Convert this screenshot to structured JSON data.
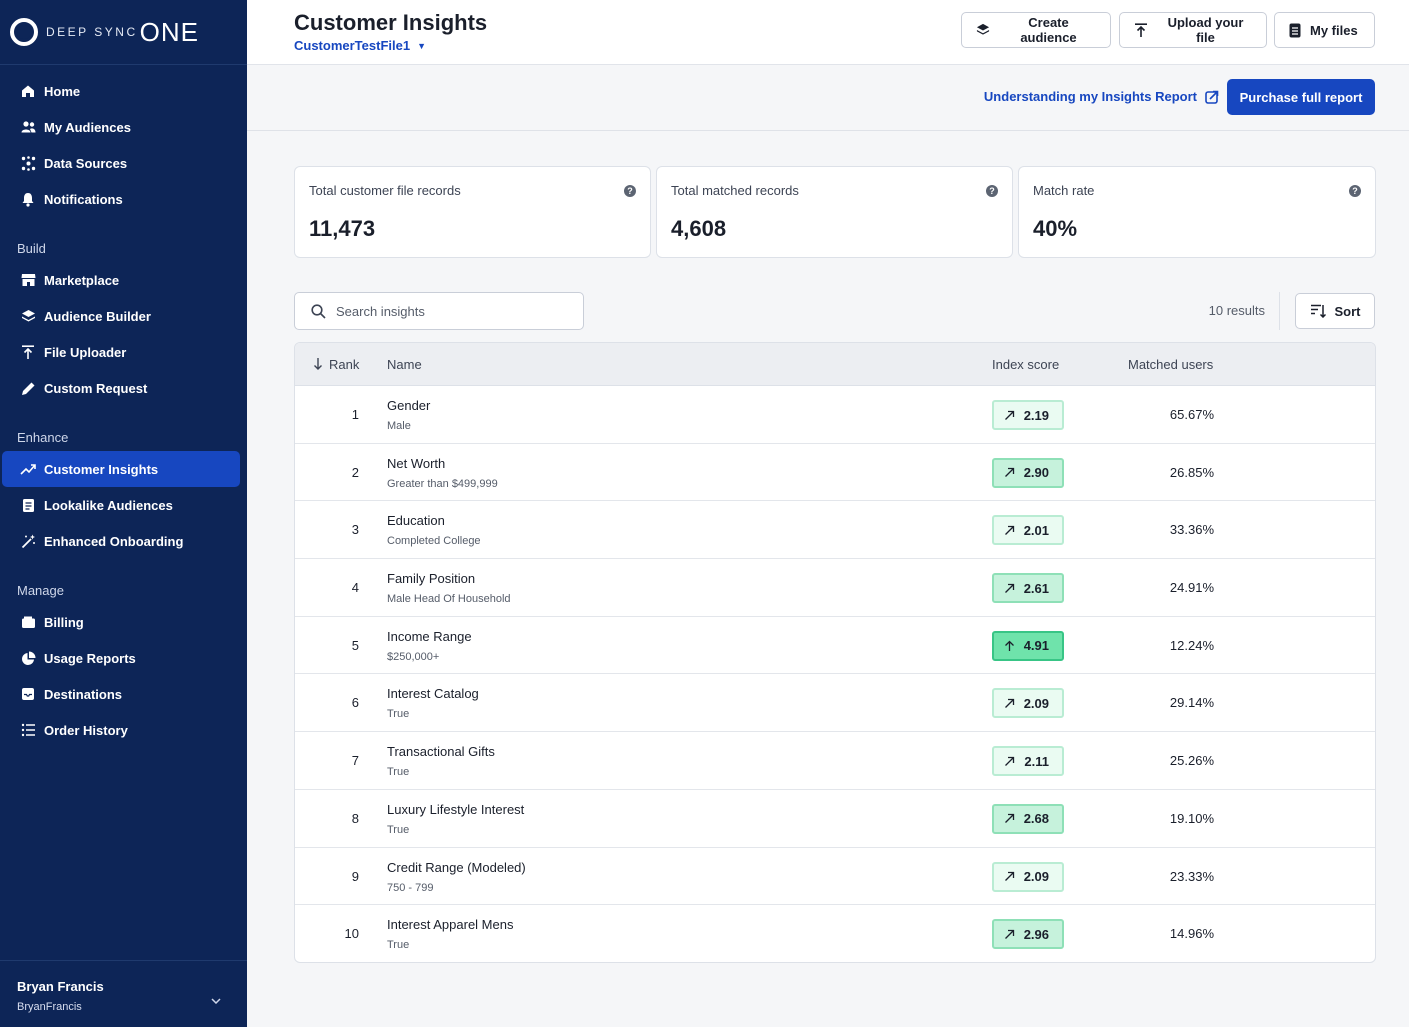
{
  "brand": {
    "logo_text": "DEEP SYNC",
    "logo_one": "ONE"
  },
  "sidebar": {
    "items_top": [
      {
        "label": "Home",
        "icon": "home-icon"
      },
      {
        "label": "My Audiences",
        "icon": "users-icon"
      },
      {
        "label": "Data Sources",
        "icon": "network-icon"
      },
      {
        "label": "Notifications",
        "icon": "bell-icon"
      }
    ],
    "section_build": "Build",
    "items_build": [
      {
        "label": "Marketplace",
        "icon": "store-icon"
      },
      {
        "label": "Audience Builder",
        "icon": "layers-icon"
      },
      {
        "label": "File Uploader",
        "icon": "upload-icon"
      },
      {
        "label": "Custom Request",
        "icon": "edit-icon"
      }
    ],
    "section_enhance": "Enhance",
    "items_enhance": [
      {
        "label": "Customer Insights",
        "icon": "trend-icon"
      },
      {
        "label": "Lookalike Audiences",
        "icon": "document-icon"
      },
      {
        "label": "Enhanced Onboarding",
        "icon": "wand-icon"
      }
    ],
    "section_manage": "Manage",
    "items_manage": [
      {
        "label": "Billing",
        "icon": "wallet-icon"
      },
      {
        "label": "Usage Reports",
        "icon": "pie-icon"
      },
      {
        "label": "Destinations",
        "icon": "inbox-icon"
      },
      {
        "label": "Order History",
        "icon": "list-icon"
      }
    ],
    "user": {
      "name": "Bryan Francis",
      "handle": "BryanFrancis"
    }
  },
  "header": {
    "title": "Customer Insights",
    "file": "CustomerTestFile1",
    "create_label": "Create audience",
    "upload_label": "Upload your file",
    "files_label": "My files"
  },
  "subheader": {
    "help_link": "Understanding my Insights Report",
    "purchase_label": "Purchase full report"
  },
  "stats": [
    {
      "label": "Total customer file records",
      "value": "11,473"
    },
    {
      "label": "Total matched records",
      "value": "4,608"
    },
    {
      "label": "Match rate",
      "value": "40%"
    }
  ],
  "search": {
    "placeholder": "Search insights"
  },
  "results_text": "10 results",
  "sort_label": "Sort",
  "table": {
    "headers": {
      "rank": "Rank",
      "name": "Name",
      "score": "Index score",
      "matched": "Matched users"
    },
    "rows": [
      {
        "rank": "1",
        "name": "Gender",
        "sub": "Male",
        "score": "2.19",
        "matched": "65.67%"
      },
      {
        "rank": "2",
        "name": "Net Worth",
        "sub": "Greater than $499,999",
        "score": "2.90",
        "matched": "26.85%"
      },
      {
        "rank": "3",
        "name": "Education",
        "sub": "Completed College",
        "score": "2.01",
        "matched": "33.36%"
      },
      {
        "rank": "4",
        "name": "Family Position",
        "sub": "Male Head Of Household",
        "score": "2.61",
        "matched": "24.91%"
      },
      {
        "rank": "5",
        "name": "Income Range",
        "sub": "$250,000+",
        "score": "4.91",
        "matched": "12.24%"
      },
      {
        "rank": "6",
        "name": "Interest Catalog",
        "sub": "True",
        "score": "2.09",
        "matched": "29.14%"
      },
      {
        "rank": "7",
        "name": "Transactional Gifts",
        "sub": "True",
        "score": "2.11",
        "matched": "25.26%"
      },
      {
        "rank": "8",
        "name": "Luxury Lifestyle Interest",
        "sub": "True",
        "score": "2.68",
        "matched": "19.10%"
      },
      {
        "rank": "9",
        "name": "Credit Range (Modeled)",
        "sub": "750 - 799",
        "score": "2.09",
        "matched": "23.33%"
      },
      {
        "rank": "10",
        "name": "Interest Apparel Mens",
        "sub": "True",
        "score": "2.96",
        "matched": "14.96%"
      }
    ]
  },
  "colors": {
    "sidebar": "#0d2557",
    "accent": "#1747c0",
    "score_high": "#6fe3ab"
  }
}
